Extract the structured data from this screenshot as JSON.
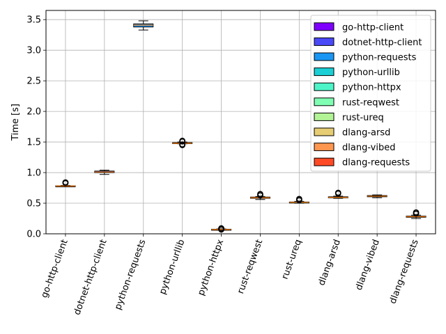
{
  "chart_data": {
    "type": "box",
    "ylabel": "Time [s]",
    "xlabel": "",
    "title": "",
    "ylim": [
      0,
      3.65
    ],
    "yticks": [
      0.0,
      0.5,
      1.0,
      1.5,
      2.0,
      2.5,
      3.0,
      3.5
    ],
    "ytick_labels": [
      "0.0",
      "0.5",
      "1.0",
      "1.5",
      "2.0",
      "2.5",
      "3.0",
      "3.5"
    ],
    "grid": true,
    "legend_position": "top-right",
    "x_label_rotation": 70,
    "median_color": "#ff7f0e",
    "series": [
      {
        "name": "go-http-client",
        "color": "#7f00ff",
        "whisker_low": 0.77,
        "q1": 0.775,
        "median": 0.78,
        "q3": 0.785,
        "whisker_high": 0.79,
        "outliers": [
          0.83,
          0.84
        ]
      },
      {
        "name": "dotnet-http-client",
        "color": "#4a49f8",
        "whisker_low": 0.97,
        "q1": 1.0,
        "median": 1.01,
        "q3": 1.025,
        "whisker_high": 1.04,
        "outliers": []
      },
      {
        "name": "python-requests",
        "color": "#1996f3",
        "whisker_low": 3.33,
        "q1": 3.38,
        "median": 3.41,
        "q3": 3.43,
        "whisker_high": 3.48,
        "outliers": []
      },
      {
        "name": "python-urllib",
        "color": "#1bcfd4",
        "whisker_low": 1.47,
        "q1": 1.475,
        "median": 1.48,
        "q3": 1.49,
        "whisker_high": 1.5,
        "outliers": [
          1.45,
          1.46,
          1.51,
          1.52
        ]
      },
      {
        "name": "python-httpx",
        "color": "#4df4c7",
        "whisker_low": 0.06,
        "q1": 0.065,
        "median": 0.07,
        "q3": 0.075,
        "whisker_high": 0.08,
        "outliers": [
          0.07,
          0.08,
          0.09
        ]
      },
      {
        "name": "rust-reqwest",
        "color": "#80feb3",
        "whisker_low": 0.56,
        "q1": 0.58,
        "median": 0.59,
        "q3": 0.6,
        "whisker_high": 0.61,
        "outliers": [
          0.63,
          0.65
        ]
      },
      {
        "name": "rust-ureq",
        "color": "#b2f396",
        "whisker_low": 0.5,
        "q1": 0.51,
        "median": 0.515,
        "q3": 0.52,
        "whisker_high": 0.53,
        "outliers": [
          0.55,
          0.57
        ]
      },
      {
        "name": "dlang-arsd",
        "color": "#e6cd73",
        "whisker_low": 0.58,
        "q1": 0.59,
        "median": 0.595,
        "q3": 0.605,
        "whisker_high": 0.615,
        "outliers": [
          0.66,
          0.67
        ]
      },
      {
        "name": "dlang-vibed",
        "color": "#ff964f",
        "whisker_low": 0.59,
        "q1": 0.605,
        "median": 0.615,
        "q3": 0.625,
        "whisker_high": 0.635,
        "outliers": []
      },
      {
        "name": "dlang-requests",
        "color": "#ff4a26",
        "whisker_low": 0.25,
        "q1": 0.27,
        "median": 0.28,
        "q3": 0.29,
        "whisker_high": 0.305,
        "outliers": [
          0.33,
          0.35
        ]
      }
    ]
  }
}
